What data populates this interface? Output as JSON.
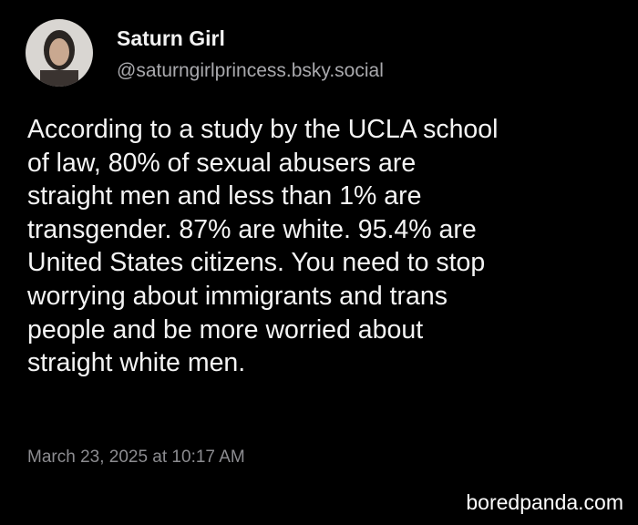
{
  "author": {
    "name": "Saturn Girl",
    "handle": "@saturngirlprincess.bsky.social"
  },
  "post": {
    "lines": [
      "According to a study by the UCLA school",
      "of law, 80% of sexual abusers are",
      "straight men and less than 1% are",
      "transgender. 87% are white. 95.4% are",
      "United States citizens. You need to stop",
      "worrying about immigrants and trans",
      "people and be more worried about",
      "straight white men."
    ],
    "timestamp": "March 23, 2025 at 10:17 AM"
  },
  "watermark": "boredpanda.com"
}
